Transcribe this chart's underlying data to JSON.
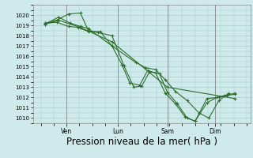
{
  "background_color": "#ceeaea",
  "grid_color": "#aacccc",
  "line_color": "#2d6e2d",
  "xlabel": "Pression niveau de la mer( hPa )",
  "xlabel_fontsize": 8.5,
  "ylim": [
    1009.5,
    1021.0
  ],
  "yticks": [
    1010,
    1011,
    1012,
    1013,
    1014,
    1015,
    1016,
    1017,
    1018,
    1019,
    1020
  ],
  "xtick_labels": [
    "Ven",
    "Lun",
    "Sam",
    "Dim"
  ],
  "xtick_positions": [
    0.15,
    0.41,
    0.66,
    0.9
  ],
  "xlim": [
    -0.02,
    1.08
  ],
  "series": [
    {
      "x": [
        0.04,
        0.1,
        0.16,
        0.22,
        0.26,
        0.31,
        0.38,
        0.44,
        0.49,
        0.53,
        0.57,
        0.62,
        0.66,
        0.71,
        0.76,
        0.8,
        0.86,
        0.91,
        0.95,
        1.0
      ],
      "y": [
        1019.2,
        1019.5,
        1020.1,
        1020.2,
        1018.5,
        1018.3,
        1018.0,
        1015.1,
        1013.0,
        1013.1,
        1014.5,
        1014.3,
        1012.5,
        1011.4,
        1010.0,
        1009.7,
        1011.5,
        1012.0,
        1012.2,
        1012.4
      ]
    },
    {
      "x": [
        0.04,
        0.1,
        0.16,
        0.21,
        0.26,
        0.32,
        0.38,
        0.43,
        0.47,
        0.52,
        0.56,
        0.6,
        0.65,
        0.7,
        0.75,
        0.8,
        0.86,
        0.92,
        0.96,
        1.0
      ],
      "y": [
        1019.2,
        1019.3,
        1018.9,
        1018.8,
        1018.4,
        1018.4,
        1017.0,
        1015.2,
        1013.4,
        1013.2,
        1014.6,
        1014.4,
        1012.4,
        1011.4,
        1010.1,
        1009.7,
        1011.9,
        1012.0,
        1012.2,
        1012.3
      ]
    },
    {
      "x": [
        0.04,
        0.11,
        0.17,
        0.22,
        0.26,
        0.38,
        0.5,
        0.55,
        0.6,
        0.65,
        0.7,
        0.76,
        0.82,
        0.87,
        0.92,
        0.97
      ],
      "y": [
        1019.1,
        1019.8,
        1019.2,
        1018.9,
        1018.7,
        1017.0,
        1015.4,
        1014.9,
        1014.7,
        1013.7,
        1012.6,
        1011.7,
        1010.5,
        1010.0,
        1011.7,
        1012.4
      ]
    },
    {
      "x": [
        0.04,
        0.11,
        0.22,
        0.38,
        0.66,
        1.0
      ],
      "y": [
        1019.1,
        1019.5,
        1018.8,
        1017.4,
        1013.0,
        1011.9
      ]
    }
  ]
}
